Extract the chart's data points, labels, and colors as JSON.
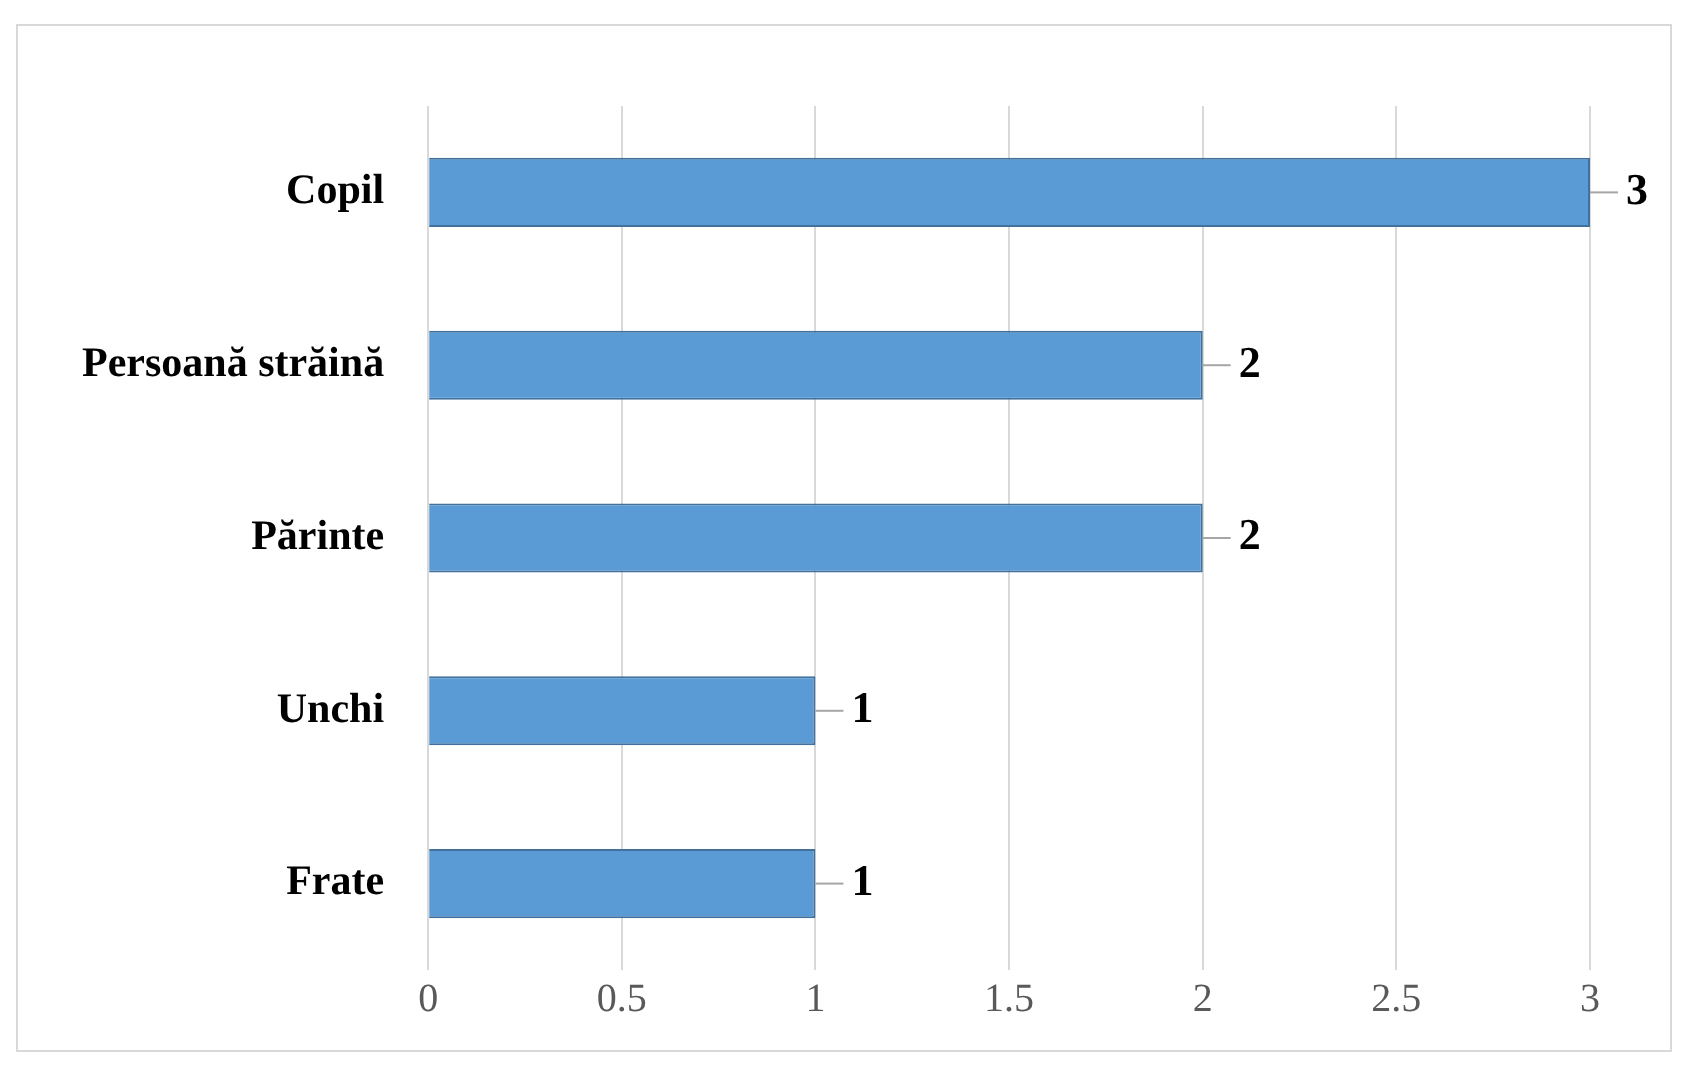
{
  "chart_data": {
    "type": "bar",
    "orientation": "horizontal",
    "categories": [
      "Copil",
      "Persoană străină",
      "Părinte",
      "Unchi",
      "Frate"
    ],
    "values": [
      3,
      2,
      2,
      1,
      1
    ],
    "color": "#5b9bd5",
    "xlim": [
      0,
      3
    ],
    "xticks": [
      0,
      0.5,
      1,
      1.5,
      2,
      2.5,
      3
    ],
    "grid": "x",
    "data_labels": true
  }
}
